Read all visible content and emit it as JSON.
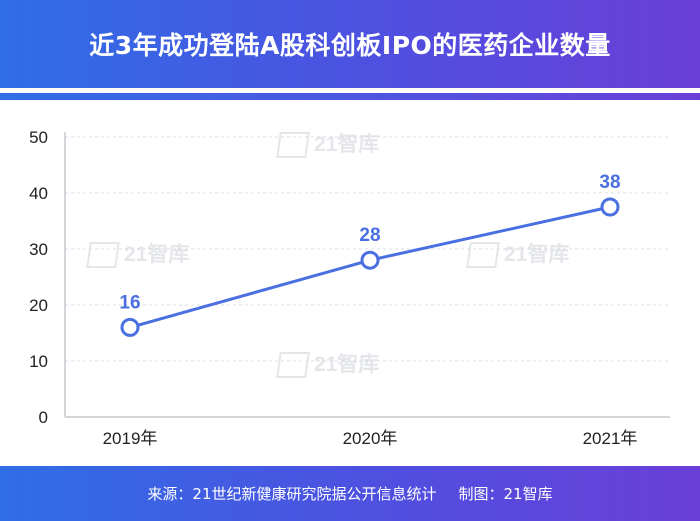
{
  "header": {
    "title": "近3年成功登陆A股科创板IPO的医药企业数量"
  },
  "footer": {
    "source": "来源：21世纪新健康研究院据公开信息统计",
    "made_by": "制图：21智库"
  },
  "watermark": {
    "text": "21智库"
  },
  "colors": {
    "accent": "#4a6fe0",
    "grid": "#d9dde3",
    "label": "#4a6fe0"
  },
  "chart_data": {
    "type": "line",
    "title": "近3年成功登陆A股科创板IPO的医药企业数量",
    "categories": [
      "2019年",
      "2020年",
      "2021年"
    ],
    "series": [
      {
        "name": "医药企业数量",
        "values": [
          16,
          28,
          37.5
        ],
        "labels": [
          "16",
          "28",
          "38"
        ]
      }
    ],
    "ylim": [
      0,
      50
    ],
    "yticks": [
      0,
      10,
      20,
      30,
      40,
      50
    ],
    "grid": true,
    "xlabel": "",
    "ylabel": ""
  }
}
